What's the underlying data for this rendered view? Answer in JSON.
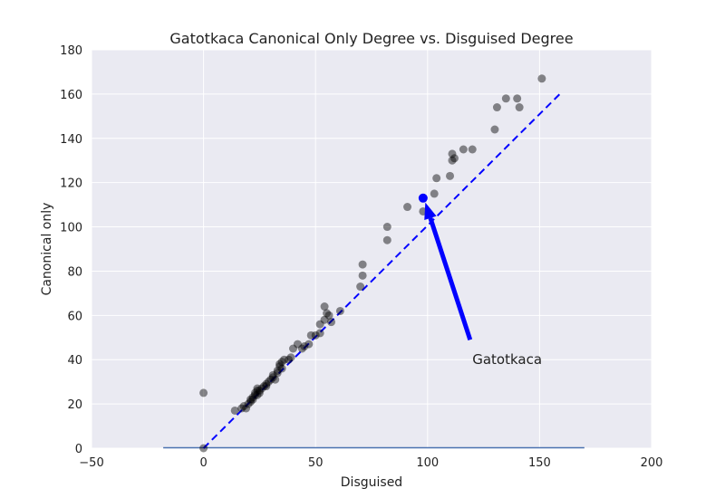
{
  "chart_data": {
    "type": "scatter",
    "title": "Gatotkaca Canonical Only Degree vs. Disguised Degree",
    "xlabel": "Disguised",
    "ylabel": "Canonical only",
    "xlim": [
      -50,
      200
    ],
    "ylim": [
      0,
      180
    ],
    "xticks": [
      -50,
      0,
      50,
      100,
      150,
      200
    ],
    "yticks": [
      0,
      20,
      40,
      60,
      80,
      100,
      120,
      140,
      160,
      180
    ],
    "grid": true,
    "colors": {
      "background": "#eaeaf2",
      "points": "#000000",
      "highlight": "#0000ff",
      "reference_line": "#0000ff",
      "baseline": "#4c72b0",
      "arrow": "#0000ff"
    },
    "reference_line": {
      "style": "dashed",
      "from": [
        0,
        0
      ],
      "to": [
        160,
        161
      ]
    },
    "baseline": {
      "y": 0,
      "x_from": -18,
      "x_to": 170
    },
    "points": [
      [
        0,
        25
      ],
      [
        0,
        0
      ],
      [
        14,
        17
      ],
      [
        17,
        18
      ],
      [
        18,
        19
      ],
      [
        19,
        18
      ],
      [
        20,
        20
      ],
      [
        21,
        21
      ],
      [
        21,
        22
      ],
      [
        22,
        22
      ],
      [
        22,
        23
      ],
      [
        23,
        24
      ],
      [
        23,
        25
      ],
      [
        24,
        26
      ],
      [
        24,
        24
      ],
      [
        24,
        27
      ],
      [
        25,
        25
      ],
      [
        25,
        26
      ],
      [
        26,
        27
      ],
      [
        27,
        28
      ],
      [
        28,
        28
      ],
      [
        28,
        29
      ],
      [
        29,
        30
      ],
      [
        30,
        31
      ],
      [
        31,
        32
      ],
      [
        31,
        33
      ],
      [
        32,
        31
      ],
      [
        33,
        34
      ],
      [
        33,
        35
      ],
      [
        34,
        37
      ],
      [
        34,
        38
      ],
      [
        35,
        36
      ],
      [
        35,
        39
      ],
      [
        36,
        40
      ],
      [
        38,
        40
      ],
      [
        39,
        41
      ],
      [
        40,
        45
      ],
      [
        42,
        47
      ],
      [
        44,
        45
      ],
      [
        45,
        46
      ],
      [
        47,
        47
      ],
      [
        48,
        51
      ],
      [
        50,
        51
      ],
      [
        52,
        52
      ],
      [
        52,
        56
      ],
      [
        54,
        58
      ],
      [
        54,
        64
      ],
      [
        55,
        61
      ],
      [
        56,
        60
      ],
      [
        57,
        57
      ],
      [
        61,
        62
      ],
      [
        70,
        73
      ],
      [
        71,
        78
      ],
      [
        71,
        83
      ],
      [
        82,
        94
      ],
      [
        82,
        100
      ],
      [
        91,
        109
      ],
      [
        98,
        107
      ],
      [
        103,
        115
      ],
      [
        104,
        122
      ],
      [
        110,
        123
      ],
      [
        111,
        130
      ],
      [
        111,
        133
      ],
      [
        112,
        131
      ],
      [
        116,
        135
      ],
      [
        120,
        135
      ],
      [
        130,
        144
      ],
      [
        131,
        154
      ],
      [
        135,
        158
      ],
      [
        140,
        158
      ],
      [
        141,
        154
      ],
      [
        151,
        167
      ]
    ],
    "highlight_point": [
      98,
      113
    ],
    "annotation": {
      "text": "Gatotkaca",
      "text_at": [
        120,
        40
      ],
      "arrow_from": [
        119,
        49
      ],
      "arrow_to": [
        99,
        111
      ]
    }
  }
}
